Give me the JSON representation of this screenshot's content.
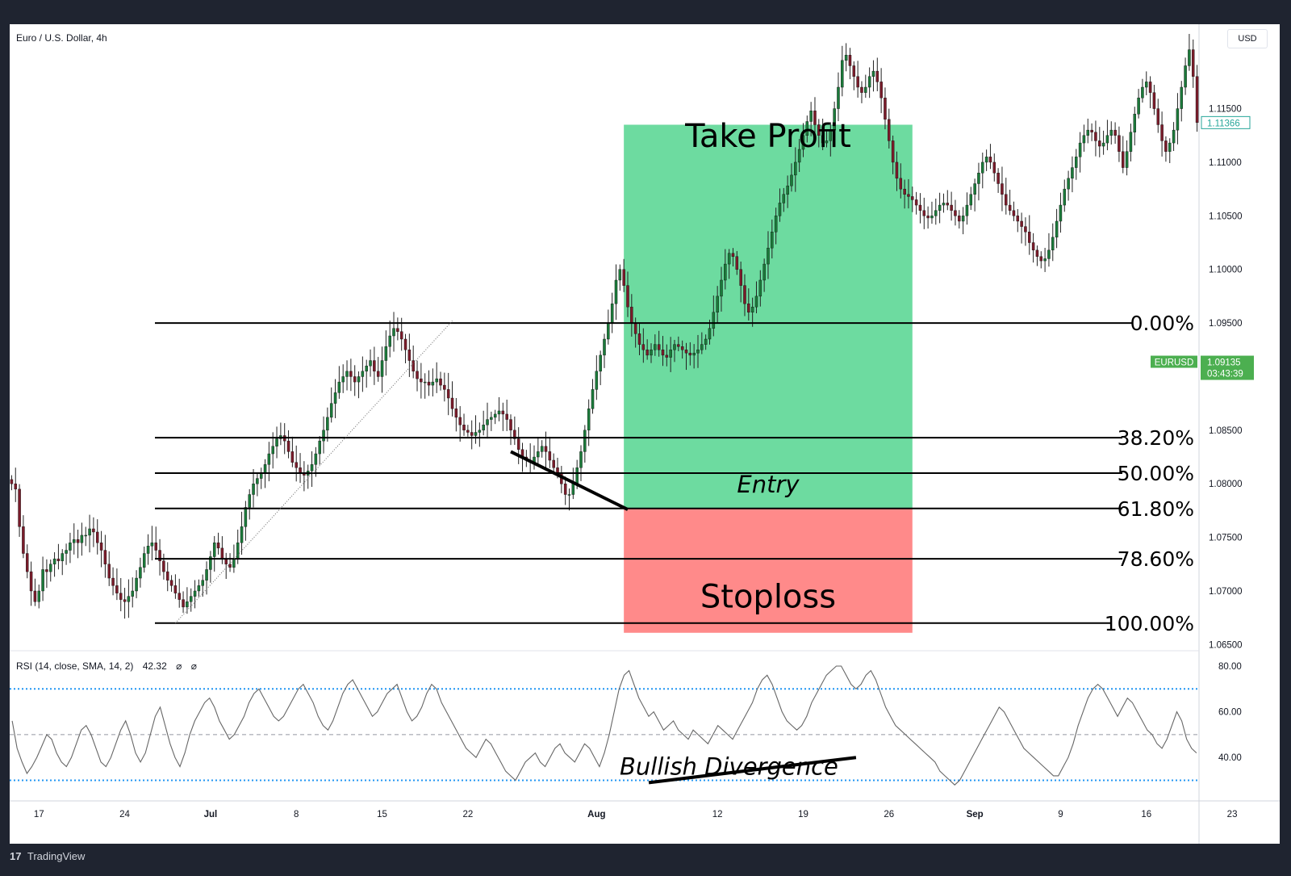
{
  "header": {
    "symbol_title": "Euro / U.S. Dollar, 4h",
    "currency": "USD"
  },
  "footer": {
    "brand": "TradingView",
    "logo": "17"
  },
  "chart_data": [
    {
      "type": "candlestick",
      "title": "Euro / U.S. Dollar, 4h",
      "y_axis": {
        "ticks": [
          "1.11500",
          "1.11000",
          "1.10500",
          "1.10000",
          "1.09500",
          "1.08500",
          "1.08000",
          "1.07500",
          "1.07000",
          "1.06500"
        ],
        "ylim": [
          1.0645,
          1.1225
        ]
      },
      "x_axis": {
        "ticks": [
          "17",
          "24",
          "Jul",
          "8",
          "15",
          "22",
          "Aug",
          "12",
          "19",
          "26",
          "Sep",
          "9",
          "16",
          "23"
        ]
      },
      "price_labels": [
        {
          "text": "1.11366",
          "value": 1.11366,
          "color": "#26a69a",
          "style": "outline"
        },
        {
          "text": "EURUSD",
          "value": 1.09135,
          "color": "#4caf50",
          "style": "tag"
        },
        {
          "text": "1.09135",
          "value": 1.09135,
          "color": "#4caf50",
          "style": "filled",
          "subtext": "03:43:39"
        }
      ],
      "fibonacci_levels": [
        {
          "label": "0.00%",
          "value": 1.095
        },
        {
          "label": "38.20%",
          "value": 1.0843
        },
        {
          "label": "50.00%",
          "value": 1.081
        },
        {
          "label": "61.80%",
          "value": 1.0777
        },
        {
          "label": "78.60%",
          "value": 1.073
        },
        {
          "label": "100.00%",
          "value": 1.067
        }
      ],
      "zones": {
        "take_profit": {
          "label": "Take Profit",
          "top": 1.1135,
          "bottom": 1.0777,
          "color": "#6ddba0"
        },
        "stoploss": {
          "label": "Stoploss",
          "top": 1.0777,
          "bottom": 1.0661,
          "color": "#ff8a8a"
        },
        "entry_label": "Entry"
      },
      "candles_close": [
        1.08,
        1.0795,
        1.076,
        1.0735,
        1.0718,
        1.07,
        1.069,
        1.07,
        1.072,
        1.0718,
        1.0725,
        1.073,
        1.0728,
        1.0735,
        1.0738,
        1.0745,
        1.0748,
        1.0745,
        1.0752,
        1.0752,
        1.0758,
        1.0755,
        1.0745,
        1.0738,
        1.0725,
        1.0712,
        1.0705,
        1.0698,
        1.0692,
        1.069,
        1.0695,
        1.07,
        1.0712,
        1.0722,
        1.0735,
        1.0742,
        1.0745,
        1.0738,
        1.0728,
        1.0718,
        1.071,
        1.0705,
        1.0698,
        1.0692,
        1.0685,
        1.069,
        1.0695,
        1.07,
        1.0705,
        1.071,
        1.072,
        1.0732,
        1.0745,
        1.074,
        1.073,
        1.0725,
        1.0722,
        1.073,
        1.0745,
        1.076,
        1.0778,
        1.079,
        1.08,
        1.0805,
        1.081,
        1.0818,
        1.0828,
        1.0835,
        1.0842,
        1.0845,
        1.084,
        1.083,
        1.082,
        1.0815,
        1.081,
        1.0808,
        1.0812,
        1.0818,
        1.0828,
        1.084,
        1.085,
        1.0862,
        1.0875,
        1.0885,
        1.0895,
        1.09,
        1.0905,
        1.09,
        1.0895,
        1.09,
        1.0905,
        1.091,
        1.0915,
        1.0905,
        1.09,
        1.0915,
        1.0928,
        1.0938,
        1.0945,
        1.0942,
        1.0935,
        1.0925,
        1.0915,
        1.0905,
        1.0898,
        1.0895,
        1.0895,
        1.0892,
        1.0895,
        1.0898,
        1.0892,
        1.0888,
        1.088,
        1.087,
        1.0862,
        1.0855,
        1.085,
        1.0848,
        1.0845,
        1.0848,
        1.085,
        1.0855,
        1.086,
        1.0862,
        1.0865,
        1.0868,
        1.0865,
        1.086,
        1.085,
        1.0842,
        1.0832,
        1.0825,
        1.0822,
        1.082,
        1.0825,
        1.083,
        1.0835,
        1.083,
        1.0822,
        1.0815,
        1.081,
        1.08,
        1.079,
        1.079,
        1.08,
        1.0815,
        1.083,
        1.085,
        1.087,
        1.0888,
        1.0905,
        1.092,
        1.0935,
        1.095,
        1.0968,
        1.099,
        1.1,
        1.0985,
        1.0965,
        1.095,
        1.094,
        1.093,
        1.0925,
        1.092,
        1.0925,
        1.093,
        1.0925,
        1.092,
        1.0918,
        1.0925,
        1.093,
        1.0928,
        1.0925,
        1.0922,
        1.092,
        1.0922,
        1.0925,
        1.093,
        1.0935,
        1.0945,
        1.096,
        1.0975,
        1.099,
        1.1005,
        1.1015,
        1.1012,
        1.1,
        1.0985,
        1.0968,
        1.096,
        1.0965,
        1.0975,
        1.099,
        1.1005,
        1.102,
        1.1035,
        1.105,
        1.1062,
        1.107,
        1.1078,
        1.1088,
        1.11,
        1.1112,
        1.1125,
        1.1138,
        1.1148,
        1.1135,
        1.1125,
        1.1118,
        1.112,
        1.113,
        1.115,
        1.117,
        1.1195,
        1.12,
        1.119,
        1.118,
        1.117,
        1.1165,
        1.117,
        1.118,
        1.1185,
        1.1175,
        1.116,
        1.114,
        1.112,
        1.11,
        1.1085,
        1.1075,
        1.107,
        1.1068,
        1.1065,
        1.106,
        1.1055,
        1.105,
        1.1048,
        1.105,
        1.1055,
        1.106,
        1.1062,
        1.106,
        1.1055,
        1.105,
        1.1045,
        1.105,
        1.106,
        1.107,
        1.108,
        1.109,
        1.11,
        1.1105,
        1.11,
        1.109,
        1.108,
        1.107,
        1.106,
        1.1055,
        1.105,
        1.1045,
        1.104,
        1.1035,
        1.1025,
        1.1018,
        1.1012,
        1.1008,
        1.101,
        1.1018,
        1.103,
        1.1045,
        1.106,
        1.1075,
        1.1085,
        1.1095,
        1.1105,
        1.1118,
        1.1125,
        1.113,
        1.1128,
        1.112,
        1.1115,
        1.1118,
        1.1125,
        1.113,
        1.1125,
        1.111,
        1.1095,
        1.111,
        1.1128,
        1.1145,
        1.116,
        1.117,
        1.1175,
        1.1165,
        1.115,
        1.1135,
        1.112,
        1.111,
        1.1118,
        1.113,
        1.115,
        1.117,
        1.119,
        1.1205,
        1.118,
        1.1137
      ],
      "annotations": [
        {
          "type": "line",
          "label": "price lower-low trendline",
          "from": {
            "x_index": 128,
            "y": 1.083
          },
          "to": {
            "x_index": 158,
            "y": 1.0776
          }
        },
        {
          "type": "dotted-line",
          "label": "fibonacci anchor",
          "from": {
            "x_index": 42,
            "y": 1.067
          },
          "to": {
            "x_index": 113,
            "y": 1.0952
          }
        }
      ]
    },
    {
      "type": "line",
      "title": "RSI (14, close, SMA, 14, 2)",
      "legend_value": "42.32",
      "legend_icons": [
        "⌀",
        "⌀"
      ],
      "y_axis": {
        "ticks": [
          "80.00",
          "60.00",
          "40.00"
        ],
        "ylim": [
          21,
          86
        ]
      },
      "levels": [
        {
          "value": 70,
          "style": "dotted",
          "color": "#2196f3"
        },
        {
          "value": 50,
          "style": "dashed",
          "color": "#9598a1"
        },
        {
          "value": 30,
          "style": "dotted",
          "color": "#2196f3"
        }
      ],
      "values": [
        56,
        44,
        38,
        33,
        36,
        40,
        45,
        50,
        48,
        42,
        38,
        36,
        40,
        46,
        52,
        54,
        50,
        44,
        38,
        36,
        40,
        46,
        52,
        56,
        50,
        42,
        38,
        42,
        50,
        58,
        62,
        54,
        46,
        40,
        36,
        42,
        50,
        56,
        60,
        64,
        66,
        62,
        56,
        52,
        48,
        50,
        54,
        58,
        64,
        68,
        70,
        66,
        62,
        58,
        56,
        58,
        62,
        66,
        70,
        72,
        68,
        64,
        58,
        54,
        52,
        56,
        62,
        68,
        72,
        74,
        70,
        66,
        62,
        58,
        60,
        64,
        68,
        70,
        72,
        66,
        60,
        56,
        58,
        62,
        68,
        72,
        70,
        64,
        60,
        56,
        52,
        48,
        44,
        42,
        40,
        44,
        48,
        46,
        42,
        38,
        34,
        32,
        30,
        34,
        38,
        40,
        42,
        38,
        36,
        40,
        44,
        46,
        42,
        40,
        38,
        42,
        46,
        44,
        40,
        36,
        42,
        50,
        60,
        70,
        76,
        78,
        72,
        66,
        62,
        58,
        60,
        56,
        52,
        54,
        56,
        52,
        50,
        48,
        52,
        50,
        48,
        46,
        50,
        54,
        52,
        50,
        48,
        52,
        56,
        60,
        64,
        70,
        74,
        76,
        72,
        66,
        60,
        56,
        54,
        52,
        54,
        58,
        64,
        68,
        72,
        76,
        78,
        80,
        80,
        76,
        72,
        70,
        72,
        76,
        78,
        74,
        68,
        62,
        58,
        54,
        52,
        50,
        48,
        46,
        44,
        42,
        40,
        38,
        34,
        32,
        30,
        28,
        30,
        34,
        38,
        42,
        46,
        50,
        54,
        58,
        62,
        60,
        56,
        52,
        48,
        44,
        42,
        40,
        38,
        36,
        34,
        32,
        32,
        36,
        40,
        46,
        54,
        60,
        66,
        70,
        72,
        70,
        66,
        62,
        58,
        62,
        66,
        64,
        60,
        56,
        52,
        50,
        46,
        44,
        48,
        54,
        60,
        56,
        48,
        44,
        42
      ],
      "annotations": [
        {
          "type": "line",
          "label": "RSI higher-low trendline",
          "from": {
            "x_index": 129,
            "y": 29
          },
          "to": {
            "x_index": 171,
            "y": 40
          }
        },
        {
          "type": "text",
          "label": "Bullish Divergence"
        }
      ]
    }
  ]
}
